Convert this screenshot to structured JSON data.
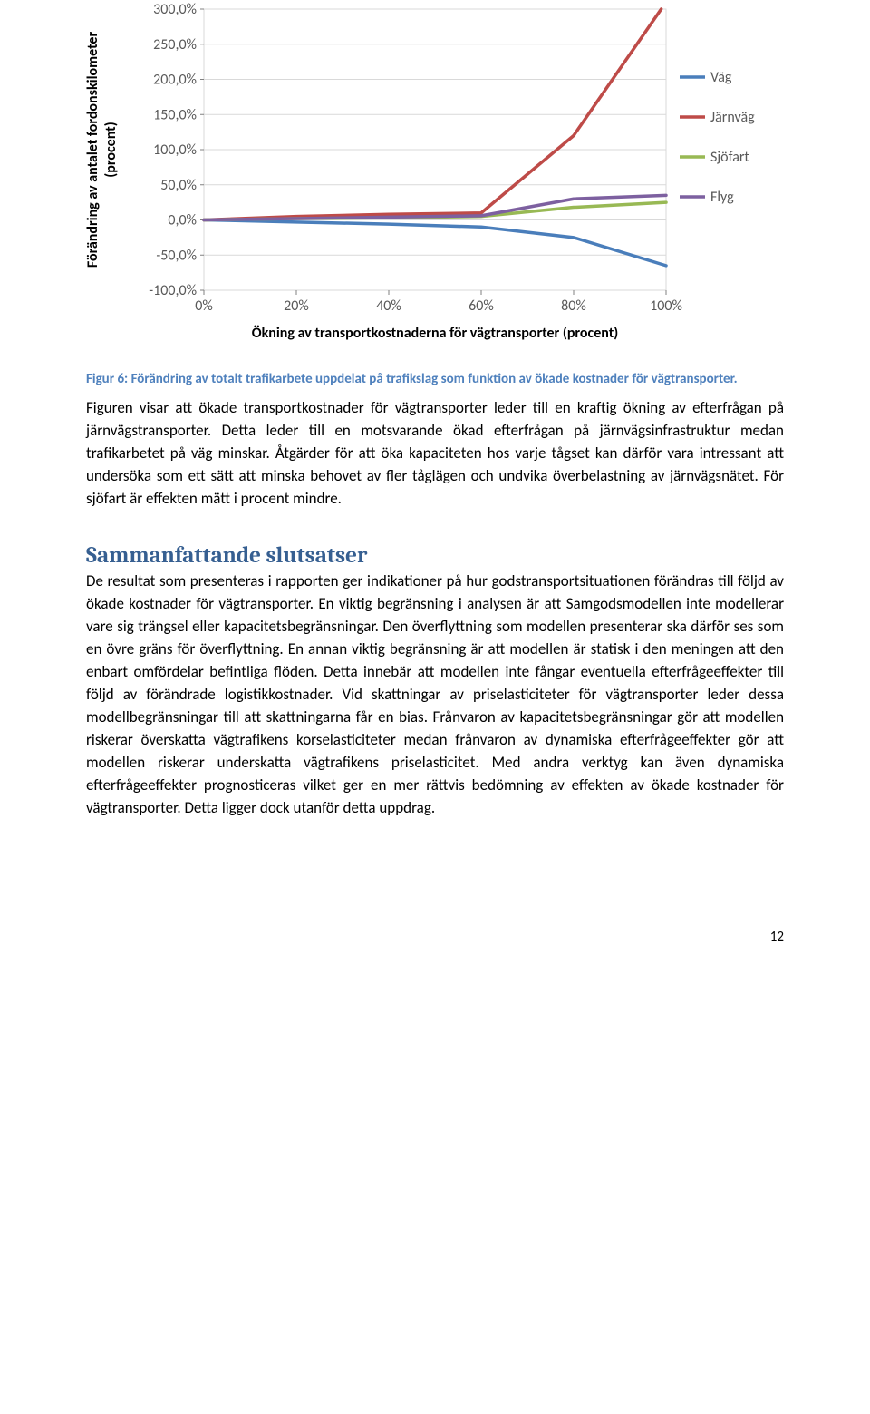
{
  "chart": {
    "type": "line",
    "y_axis_title": "Förändring av antalet fordonskilometer (procent)",
    "x_axis_title": "Ökning av transportkostnaderna för vägtransporter (procent)",
    "x_ticks": [
      "0%",
      "20%",
      "40%",
      "60%",
      "80%",
      "100%"
    ],
    "x_values": [
      0,
      20,
      40,
      60,
      80,
      100
    ],
    "y_ticks": [
      "300,0%",
      "250,0%",
      "200,0%",
      "150,0%",
      "100,0%",
      "50,0%",
      "0,0%",
      "-50,0%",
      "-100,0%"
    ],
    "y_values": [
      300,
      250,
      200,
      150,
      100,
      50,
      0,
      -50,
      -100
    ],
    "ylim": [
      -100,
      300
    ],
    "xlim": [
      0,
      100
    ],
    "series": [
      {
        "name": "Väg",
        "color": "#4a7ebb",
        "values": [
          0,
          -3,
          -6,
          -10,
          -25,
          -65
        ]
      },
      {
        "name": "Järnväg",
        "color": "#be4b48",
        "values": [
          0,
          5,
          8,
          10,
          120,
          310
        ]
      },
      {
        "name": "Sjöfart",
        "color": "#98b954",
        "values": [
          0,
          2,
          3,
          5,
          18,
          25
        ]
      },
      {
        "name": "Flyg",
        "color": "#7d60a0",
        "values": [
          0,
          2,
          4,
          6,
          30,
          35
        ]
      }
    ],
    "line_width": 3.5,
    "tick_font_size": 16,
    "tick_color": "#595959",
    "axis_title_font_size": 16,
    "axis_title_font_weight": "bold",
    "grid_color": "#d9d9d9",
    "legend_font_size": 16,
    "background_color": "#ffffff"
  },
  "caption": "Figur 6: Förändring av totalt trafikarbete uppdelat på trafikslag som funktion av ökade kostnader för vägtransporter.",
  "paragraph1": "Figuren visar att ökade transportkostnader för vägtransporter leder till en kraftig ökning av efterfrågan på järnvägstransporter. Detta leder till en motsvarande ökad efterfrågan på järnvägsinfrastruktur medan trafikarbetet på väg minskar. Åtgärder för att öka kapaciteten hos varje tågset kan därför vara intressant att undersöka som ett sätt att minska behovet av fler tåglägen och undvika överbelastning av järnvägsnätet. För sjöfart är effekten mätt i procent mindre.",
  "section_title": "Sammanfattande slutsatser",
  "paragraph2": "De resultat som presenteras i rapporten ger indikationer på hur godstransportsituationen förändras till följd av ökade kostnader för vägtransporter. En viktig begränsning i analysen är att Samgodsmodellen inte modellerar vare sig trängsel eller kapacitetsbegränsningar. Den överflyttning som modellen presenterar ska därför ses som en övre gräns för överflyttning. En annan viktig begränsning är att modellen är statisk i den meningen att den enbart omfördelar befintliga flöden. Detta innebär att modellen inte fångar eventuella efterfrågeeffekter till följd av förändrade logistikkostnader. Vid skattningar av priselasticiteter för vägtransporter leder dessa modellbegränsningar till att skattningarna får en bias. Frånvaron av kapacitetsbegränsningar gör att modellen riskerar överskatta vägtrafikens korselasticiteter medan frånvaron av dynamiska efterfrågeeffekter gör att modellen riskerar underskatta vägtrafikens priselasticitet. Med andra verktyg kan även dynamiska efterfrågeeffekter prognosticeras vilket ger en mer rättvis bedömning av effekten av ökade kostnader för vägtransporter. Detta ligger dock utanför detta uppdrag.",
  "page_number": "12"
}
